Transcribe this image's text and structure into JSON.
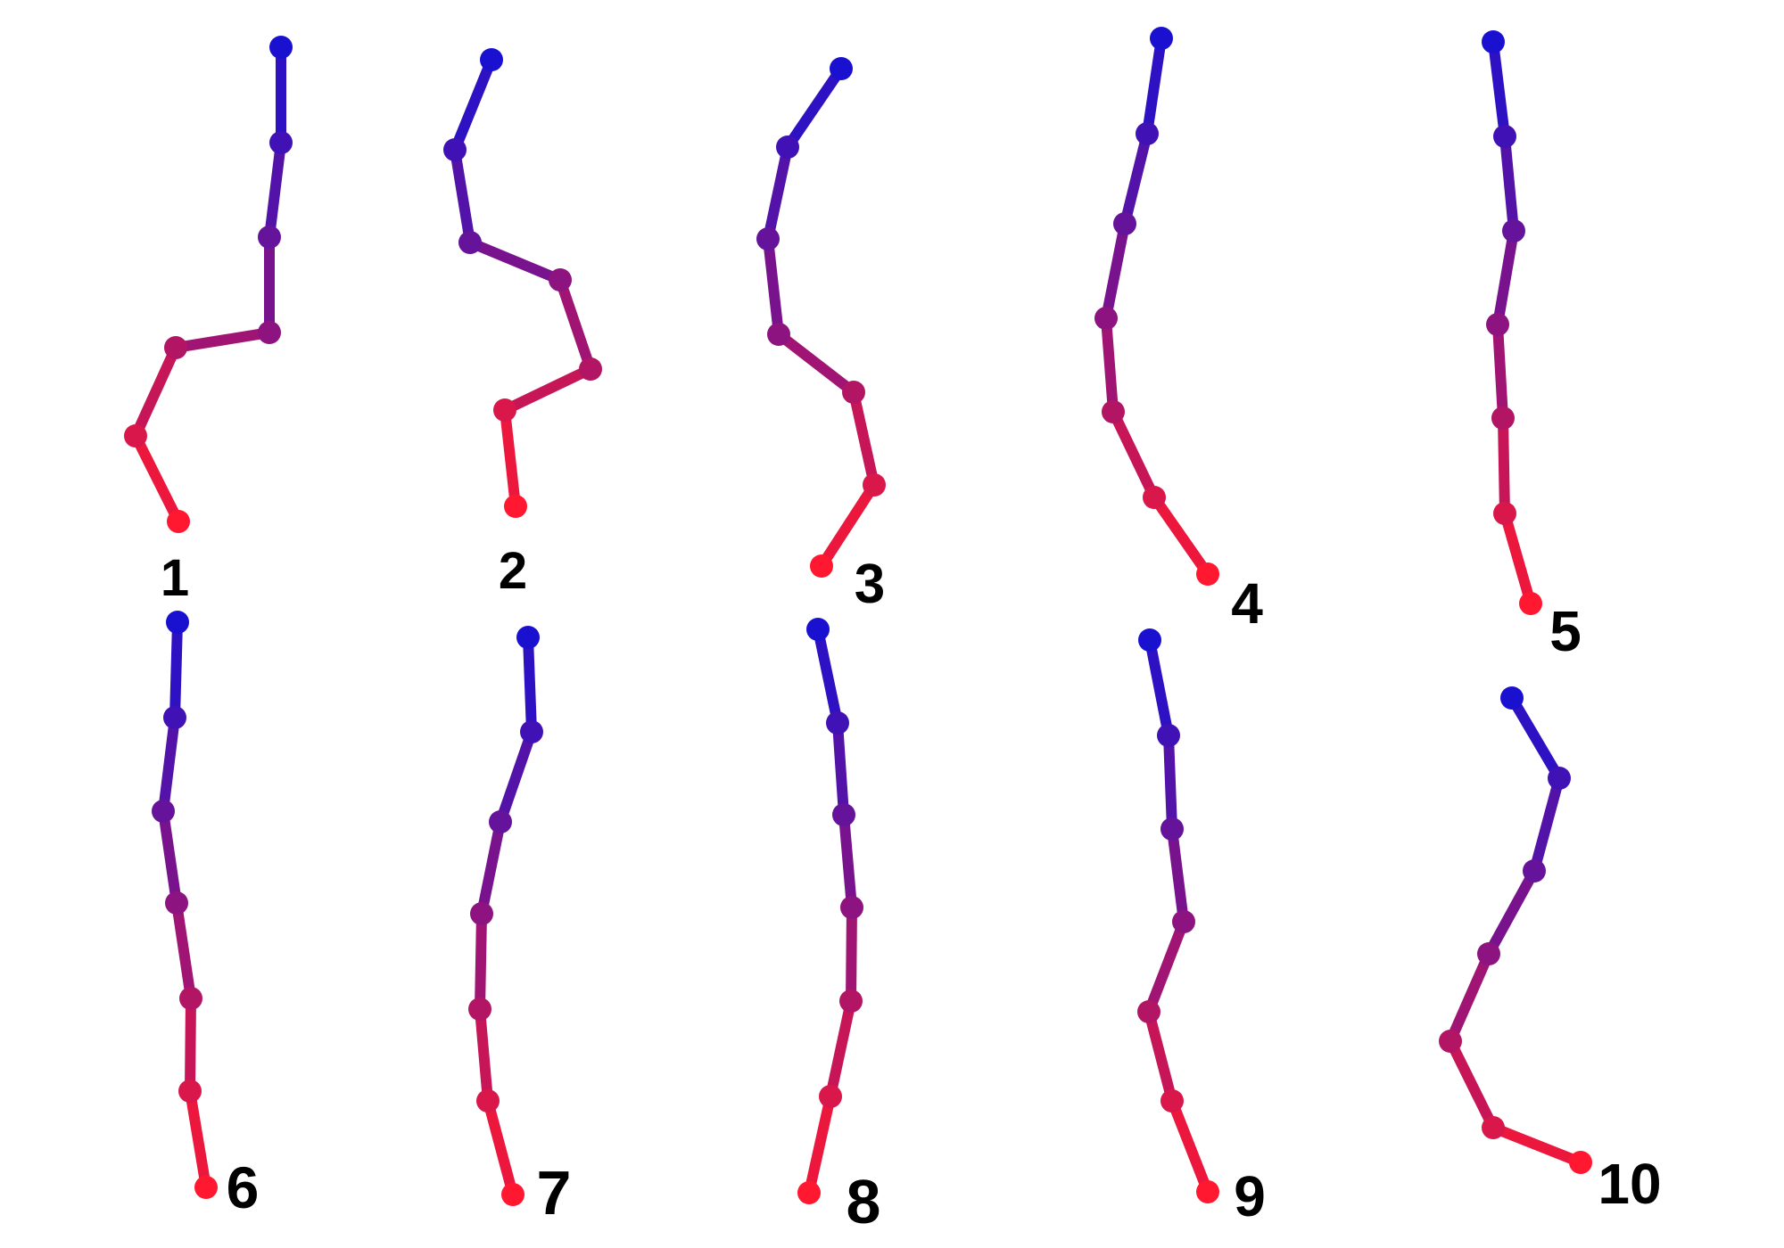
{
  "figure": {
    "chains": [
      {
        "label": "1"
      },
      {
        "label": "2"
      },
      {
        "label": "3"
      },
      {
        "label": "4"
      },
      {
        "label": "5"
      },
      {
        "label": "6"
      },
      {
        "label": "7"
      },
      {
        "label": "8"
      },
      {
        "label": "9"
      },
      {
        "label": "10"
      }
    ],
    "colors": {
      "start": "#1a10d0",
      "end": "#ff1830",
      "label": "#000000",
      "background": "#ffffff"
    }
  }
}
